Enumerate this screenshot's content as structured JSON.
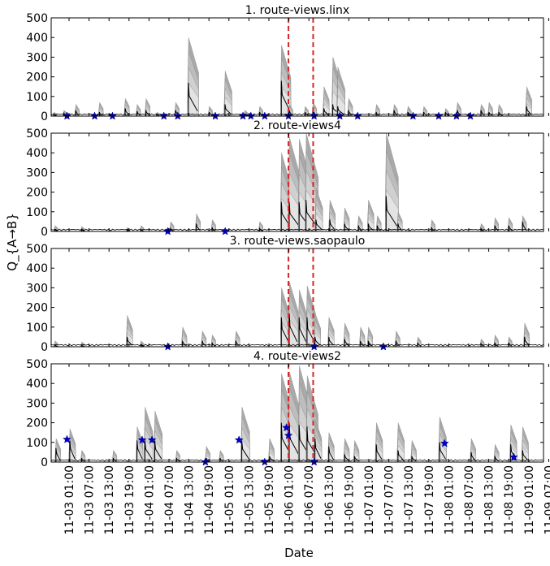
{
  "figure": {
    "xlabel": "Date",
    "ylabel": "Q_{A→B}",
    "x_tick_labels": [
      "11-03 01:00",
      "11-03 07:00",
      "11-03 13:00",
      "11-03 19:00",
      "11-04 01:00",
      "11-04 07:00",
      "11-04 13:00",
      "11-04 19:00",
      "11-05 01:00",
      "11-05 13:00",
      "11-05 19:00",
      "11-06 01:00",
      "11-06 07:00",
      "11-06 13:00",
      "11-06 19:00",
      "11-07 01:00",
      "11-07 07:00",
      "11-07 13:00",
      "11-07 19:00",
      "11-08 01:00",
      "11-08 07:00",
      "11-08 13:00",
      "11-08 19:00",
      "11-09 01:00",
      "11-09 07:00"
    ],
    "y_ticks": [
      0,
      100,
      200,
      300,
      400,
      500
    ]
  },
  "chart_data": [
    {
      "type": "area",
      "title": "1. route-views.linx",
      "ylim": [
        0,
        500
      ],
      "grid": false,
      "vertical_lines": [
        {
          "x": 12.0,
          "color": "#d62728",
          "style": "dashed"
        },
        {
          "x": 13.25,
          "color": "#d62728",
          "style": "dashed"
        }
      ],
      "spikes": [
        [
          0.1,
          20,
          10
        ],
        [
          0.6,
          30,
          15
        ],
        [
          1.2,
          60,
          30
        ],
        [
          2.4,
          70,
          20
        ],
        [
          3.7,
          90,
          40
        ],
        [
          4.3,
          60,
          25
        ],
        [
          4.75,
          90,
          30
        ],
        [
          5.3,
          20,
          10
        ],
        [
          6.25,
          70,
          30
        ],
        [
          6.9,
          400,
          170
        ],
        [
          7.95,
          50,
          20
        ],
        [
          8.75,
          230,
          60
        ],
        [
          9.75,
          30,
          10
        ],
        [
          10.5,
          50,
          20
        ],
        [
          11.6,
          360,
          180
        ],
        [
          12.0,
          60,
          30
        ],
        [
          12.8,
          50,
          20
        ],
        [
          13.2,
          70,
          30
        ],
        [
          13.75,
          150,
          40
        ],
        [
          14.2,
          300,
          60
        ],
        [
          14.45,
          250,
          50
        ],
        [
          15.0,
          90,
          30
        ],
        [
          16.4,
          60,
          20
        ],
        [
          17.3,
          60,
          30
        ],
        [
          18.0,
          50,
          20
        ],
        [
          18.8,
          50,
          20
        ],
        [
          19.9,
          40,
          20
        ],
        [
          20.5,
          70,
          30
        ],
        [
          21.7,
          60,
          30
        ],
        [
          22.1,
          70,
          20
        ],
        [
          22.6,
          60,
          20
        ],
        [
          24.0,
          150,
          50
        ]
      ],
      "stars": [
        0.8,
        2.2,
        3.1,
        5.7,
        6.4,
        8.3,
        9.7,
        10.1,
        10.8,
        12.0,
        13.3,
        14.6,
        15.5,
        18.3,
        19.6,
        20.5,
        21.2
      ]
    },
    {
      "type": "area",
      "title": "2. route-views4",
      "ylim": [
        0,
        500
      ],
      "grid": false,
      "vertical_lines": [
        {
          "x": 12.0,
          "color": "#d62728",
          "style": "dashed"
        },
        {
          "x": 13.25,
          "color": "#d62728",
          "style": "dashed"
        }
      ],
      "spikes": [
        [
          0.15,
          30,
          10
        ],
        [
          1.5,
          25,
          10
        ],
        [
          3.8,
          20,
          8
        ],
        [
          4.5,
          30,
          10
        ],
        [
          6.0,
          50,
          15
        ],
        [
          7.3,
          90,
          40
        ],
        [
          8.1,
          60,
          20
        ],
        [
          10.5,
          50,
          15
        ],
        [
          11.6,
          400,
          150
        ],
        [
          12.0,
          480,
          150
        ],
        [
          12.5,
          470,
          150
        ],
        [
          12.85,
          500,
          160
        ],
        [
          13.35,
          220,
          60
        ],
        [
          14.05,
          160,
          60
        ],
        [
          14.8,
          120,
          40
        ],
        [
          15.5,
          80,
          30
        ],
        [
          16.0,
          160,
          40
        ],
        [
          16.45,
          80,
          30
        ],
        [
          16.9,
          500,
          180
        ],
        [
          17.5,
          100,
          40
        ],
        [
          19.2,
          60,
          20
        ],
        [
          21.7,
          40,
          15
        ],
        [
          22.4,
          70,
          30
        ],
        [
          23.1,
          70,
          30
        ],
        [
          23.8,
          80,
          50
        ]
      ],
      "stars": [
        5.9,
        8.8
      ]
    },
    {
      "type": "area",
      "title": "3. route-views.saopaulo",
      "ylim": [
        0,
        500
      ],
      "grid": false,
      "vertical_lines": [
        {
          "x": 12.0,
          "color": "#d62728",
          "style": "dashed"
        },
        {
          "x": 13.25,
          "color": "#d62728",
          "style": "dashed"
        }
      ],
      "spikes": [
        [
          0.15,
          30,
          10
        ],
        [
          1.5,
          25,
          8
        ],
        [
          3.8,
          160,
          50
        ],
        [
          4.5,
          30,
          10
        ],
        [
          6.6,
          100,
          30
        ],
        [
          7.6,
          80,
          30
        ],
        [
          8.1,
          60,
          20
        ],
        [
          9.3,
          80,
          30
        ],
        [
          11.6,
          300,
          150
        ],
        [
          12.0,
          330,
          170
        ],
        [
          12.5,
          290,
          150
        ],
        [
          12.9,
          310,
          150
        ],
        [
          13.3,
          170,
          50
        ],
        [
          14.0,
          150,
          50
        ],
        [
          14.8,
          120,
          40
        ],
        [
          15.6,
          100,
          30
        ],
        [
          16.0,
          100,
          30
        ],
        [
          17.4,
          80,
          30
        ],
        [
          18.5,
          50,
          20
        ],
        [
          21.7,
          40,
          15
        ],
        [
          22.4,
          60,
          20
        ],
        [
          23.1,
          50,
          20
        ],
        [
          23.9,
          120,
          50
        ]
      ],
      "stars": [
        5.9,
        13.3,
        16.8
      ]
    },
    {
      "type": "area",
      "title": "4. route-views2",
      "ylim": [
        0,
        500
      ],
      "grid": false,
      "vertical_lines": [
        {
          "x": 12.0,
          "color": "#d62728",
          "style": "dashed"
        },
        {
          "x": 13.25,
          "color": "#d62728",
          "style": "dashed"
        }
      ],
      "spikes": [
        [
          0.2,
          120,
          70
        ],
        [
          0.9,
          170,
          110
        ],
        [
          1.5,
          60,
          20
        ],
        [
          3.1,
          60,
          20
        ],
        [
          4.3,
          180,
          110
        ],
        [
          4.7,
          280,
          110
        ],
        [
          5.2,
          260,
          110
        ],
        [
          6.3,
          60,
          20
        ],
        [
          7.8,
          80,
          20
        ],
        [
          8.5,
          60,
          20
        ],
        [
          9.6,
          280,
          110
        ],
        [
          11.0,
          120,
          30
        ],
        [
          11.6,
          450,
          200
        ],
        [
          12.0,
          460,
          200
        ],
        [
          12.5,
          490,
          190
        ],
        [
          12.9,
          440,
          180
        ],
        [
          13.3,
          220,
          120
        ],
        [
          14.0,
          150,
          80
        ],
        [
          14.8,
          120,
          40
        ],
        [
          15.3,
          110,
          30
        ],
        [
          16.4,
          200,
          90
        ],
        [
          17.5,
          200,
          60
        ],
        [
          18.2,
          110,
          30
        ],
        [
          19.6,
          230,
          100
        ],
        [
          21.2,
          120,
          50
        ],
        [
          22.4,
          90,
          30
        ],
        [
          23.2,
          190,
          90
        ],
        [
          23.8,
          180,
          60
        ]
      ],
      "stars": [
        [
          0.8,
          115
        ],
        [
          4.6,
          112
        ],
        [
          5.1,
          112
        ],
        [
          9.5,
          112
        ],
        [
          10.8,
          0
        ],
        [
          11.9,
          175
        ],
        [
          12.0,
          135
        ],
        [
          13.3,
          0
        ],
        [
          19.9,
          95
        ],
        [
          23.4,
          25
        ],
        [
          7.8,
          0
        ]
      ]
    }
  ]
}
